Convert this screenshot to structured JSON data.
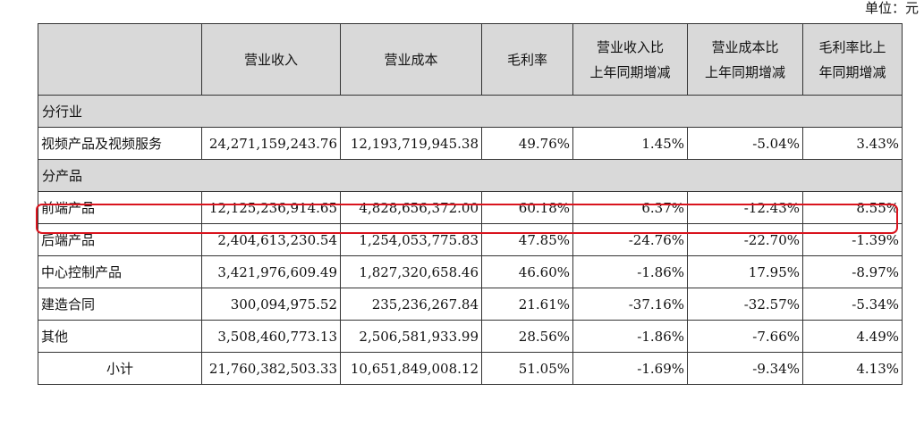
{
  "unit_label": "单位：元",
  "table": {
    "headers": {
      "blank": "",
      "revenue": "营业收入",
      "cost": "营业成本",
      "gross_margin": "毛利率",
      "revenue_change_l1": "营业收入比",
      "revenue_change_l2": "上年同期增减",
      "cost_change_l1": "营业成本比",
      "cost_change_l2": "上年同期增减",
      "margin_change_l1": "毛利率比上",
      "margin_change_l2": "年同期增减"
    },
    "sections": {
      "by_industry": "分行业",
      "by_product": "分产品"
    },
    "rows": [
      {
        "name": "视频产品及视频服务",
        "revenue": "24,271,159,243.76",
        "cost": "12,193,719,945.38",
        "margin": "49.76%",
        "rev_chg": "1.45%",
        "cost_chg": "-5.04%",
        "margin_chg": "3.43%"
      },
      {
        "name": "前端产品",
        "revenue": "12,125,236,914.65",
        "cost": "4,828,656,372.00",
        "margin": "60.18%",
        "rev_chg": "6.37%",
        "cost_chg": "-12.43%",
        "margin_chg": "8.55%"
      },
      {
        "name": "后端产品",
        "revenue": "2,404,613,230.54",
        "cost": "1,254,053,775.83",
        "margin": "47.85%",
        "rev_chg": "-24.76%",
        "cost_chg": "-22.70%",
        "margin_chg": "-1.39%"
      },
      {
        "name": "中心控制产品",
        "revenue": "3,421,976,609.49",
        "cost": "1,827,320,658.46",
        "margin": "46.60%",
        "rev_chg": "-1.86%",
        "cost_chg": "17.95%",
        "margin_chg": "-8.97%"
      },
      {
        "name": "建造合同",
        "revenue": "300,094,975.52",
        "cost": "235,236,267.84",
        "margin": "21.61%",
        "rev_chg": "-37.16%",
        "cost_chg": "-32.57%",
        "margin_chg": "-5.34%"
      },
      {
        "name": "其他",
        "revenue": "3,508,460,773.13",
        "cost": "2,506,581,933.99",
        "margin": "28.56%",
        "rev_chg": "-1.86%",
        "cost_chg": "-7.66%",
        "margin_chg": "4.49%"
      },
      {
        "name": "小计",
        "revenue": "21,760,382,503.33",
        "cost": "10,651,849,008.12",
        "margin": "51.05%",
        "rev_chg": "-1.69%",
        "cost_chg": "-9.34%",
        "margin_chg": "4.13%"
      }
    ]
  },
  "colors": {
    "header_bg": "#d9d9d9",
    "highlight": "#d9141e"
  }
}
